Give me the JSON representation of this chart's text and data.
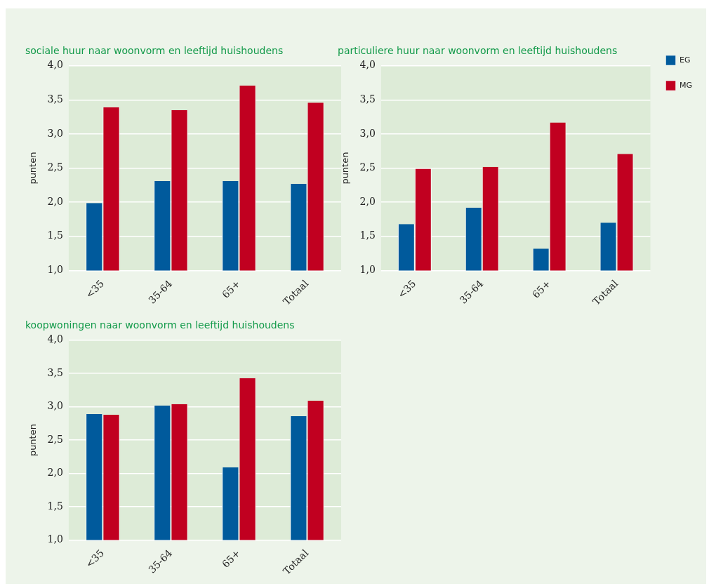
{
  "chart_data": [
    {
      "type": "bar",
      "title": "sociale huur naar woonvorm en leeftijd huishoudens",
      "ylabel": "punten",
      "categories": [
        "<35",
        "35-64",
        "65+",
        "Totaal"
      ],
      "series": [
        {
          "color": "#005a9c",
          "values": [
            1.99,
            2.31,
            2.31,
            2.27
          ]
        },
        {
          "color": "#c10020",
          "values": [
            3.39,
            3.35,
            3.71,
            3.46
          ]
        }
      ],
      "ylim": [
        1,
        4
      ],
      "yticks": [
        {
          "value": 1,
          "label": "1,0"
        },
        {
          "value": 1.5,
          "label": "1,5"
        },
        {
          "value": 2,
          "label": "2,0"
        },
        {
          "value": 2.5,
          "label": "2,5"
        },
        {
          "value": 3,
          "label": "3,0"
        },
        {
          "value": 3.5,
          "label": "3,5"
        },
        {
          "value": 4,
          "label": "4,0"
        }
      ],
      "grid": "y",
      "legend": false
    },
    {
      "type": "bar",
      "title": "particuliere huur naar woonvorm en leeftijd huishoudens",
      "ylabel": "punten",
      "categories": [
        "<35",
        "35-64",
        "65+",
        "Totaal"
      ],
      "series": [
        {
          "name": "EG",
          "color": "#005a9c",
          "values": [
            1.68,
            1.92,
            1.32,
            1.7
          ]
        },
        {
          "name": "MG",
          "color": "#c10020",
          "values": [
            2.49,
            2.52,
            3.17,
            2.71
          ]
        }
      ],
      "ylim": [
        1,
        4
      ],
      "yticks": [
        {
          "value": 1,
          "label": "1,0"
        },
        {
          "value": 1.5,
          "label": "1,5"
        },
        {
          "value": 2,
          "label": "2,0"
        },
        {
          "value": 2.5,
          "label": "2,5"
        },
        {
          "value": 3,
          "label": "3,0"
        },
        {
          "value": 3.5,
          "label": "3,5"
        },
        {
          "value": 4,
          "label": "4,0"
        }
      ],
      "grid": "y",
      "legend": "right"
    },
    {
      "type": "bar",
      "title": "koopwoningen naar woonvorm en leeftijd huishoudens",
      "ylabel": "punten",
      "categories": [
        "<35",
        "35-64",
        "65+",
        "Totaal"
      ],
      "series": [
        {
          "color": "#005a9c",
          "values": [
            2.89,
            3.02,
            2.09,
            2.86
          ]
        },
        {
          "color": "#c10020",
          "values": [
            2.88,
            3.04,
            3.43,
            3.09
          ]
        }
      ],
      "ylim": [
        1,
        4
      ],
      "yticks": [
        {
          "value": 1,
          "label": "1,0"
        },
        {
          "value": 1.5,
          "label": "1,5"
        },
        {
          "value": 2,
          "label": "2,0"
        },
        {
          "value": 2.5,
          "label": "2,5"
        },
        {
          "value": 3,
          "label": "3,0"
        },
        {
          "value": 3.5,
          "label": "3,5"
        },
        {
          "value": 4,
          "label": "4,0"
        }
      ],
      "grid": "y",
      "legend": false
    }
  ]
}
